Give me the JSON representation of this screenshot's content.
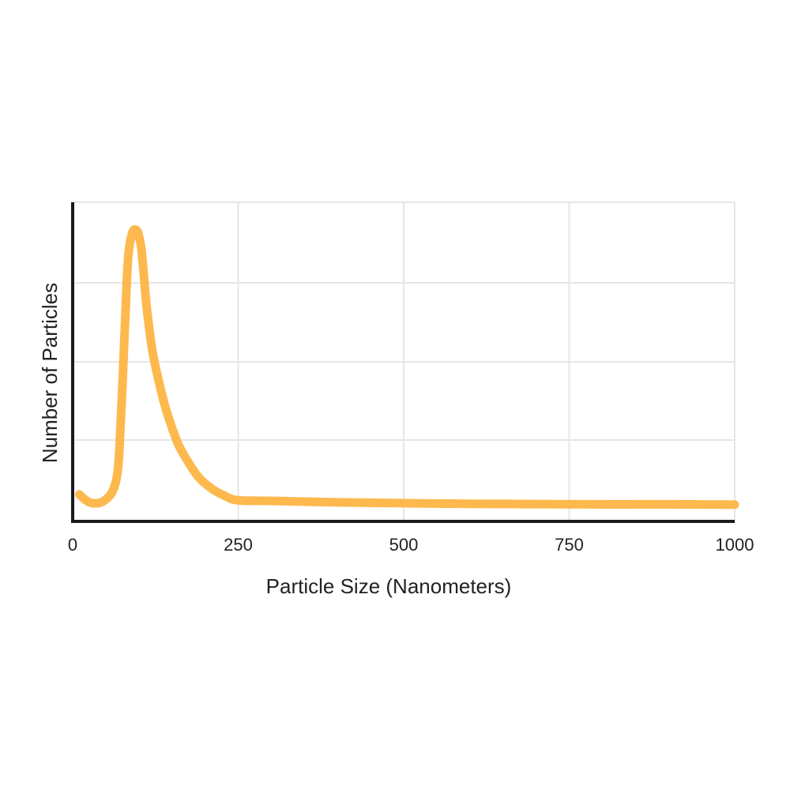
{
  "chart_data": {
    "type": "line",
    "title": "",
    "xlabel": "Particle Size (Nanometers)",
    "ylabel": "Number of Particles",
    "xlim": [
      0,
      1000
    ],
    "ylim": [
      0,
      100
    ],
    "x_ticks": [
      "0",
      "250",
      "500",
      "750",
      "1000"
    ],
    "y_tick_labels_shown": false,
    "grid": true,
    "legend": "none",
    "colors": {
      "line": "#FDB94E",
      "axis": "#1a1a1a",
      "grid": "#e6e6e6"
    },
    "series": [
      {
        "x": [
          10,
          20,
          30,
          45,
          60,
          68,
          72,
          76,
          80,
          84,
          90,
          96,
          100,
          104,
          108,
          112,
          120,
          130,
          140,
          150,
          160,
          175,
          190,
          210,
          230,
          250,
          300,
          400,
          500,
          600,
          700,
          800,
          900,
          1000
        ],
        "values": [
          6,
          4,
          3,
          3.5,
          7,
          14,
          28,
          48,
          70,
          88,
          96,
          97,
          95,
          90,
          80,
          70,
          56,
          45,
          36,
          29,
          23,
          17,
          12,
          8,
          5.5,
          4,
          3.8,
          3.3,
          3,
          2.8,
          2.7,
          2.6,
          2.6,
          2.5
        ]
      }
    ]
  }
}
